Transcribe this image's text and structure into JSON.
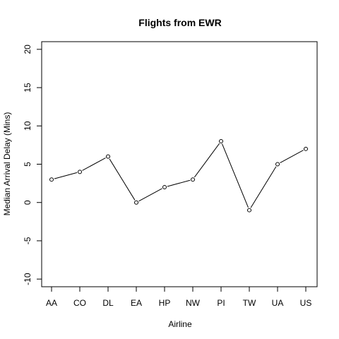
{
  "chart_data": {
    "type": "line",
    "title": "Flights from EWR",
    "xlabel": "Airline",
    "ylabel": "Median Arrival Delay (Mins)",
    "categories": [
      "AA",
      "CO",
      "DL",
      "EA",
      "HP",
      "NW",
      "PI",
      "TW",
      "UA",
      "US"
    ],
    "series": [
      {
        "values": [
          3,
          4,
          6,
          0,
          2,
          3,
          8,
          -1,
          5,
          7
        ]
      }
    ],
    "ylim": [
      -11,
      21
    ],
    "yticks": [
      -10,
      -5,
      0,
      5,
      10,
      15,
      20
    ],
    "grid": false,
    "marker": "open-circle",
    "colors": {
      "line": "#000000",
      "frame": "#000000",
      "background": "#ffffff"
    }
  }
}
